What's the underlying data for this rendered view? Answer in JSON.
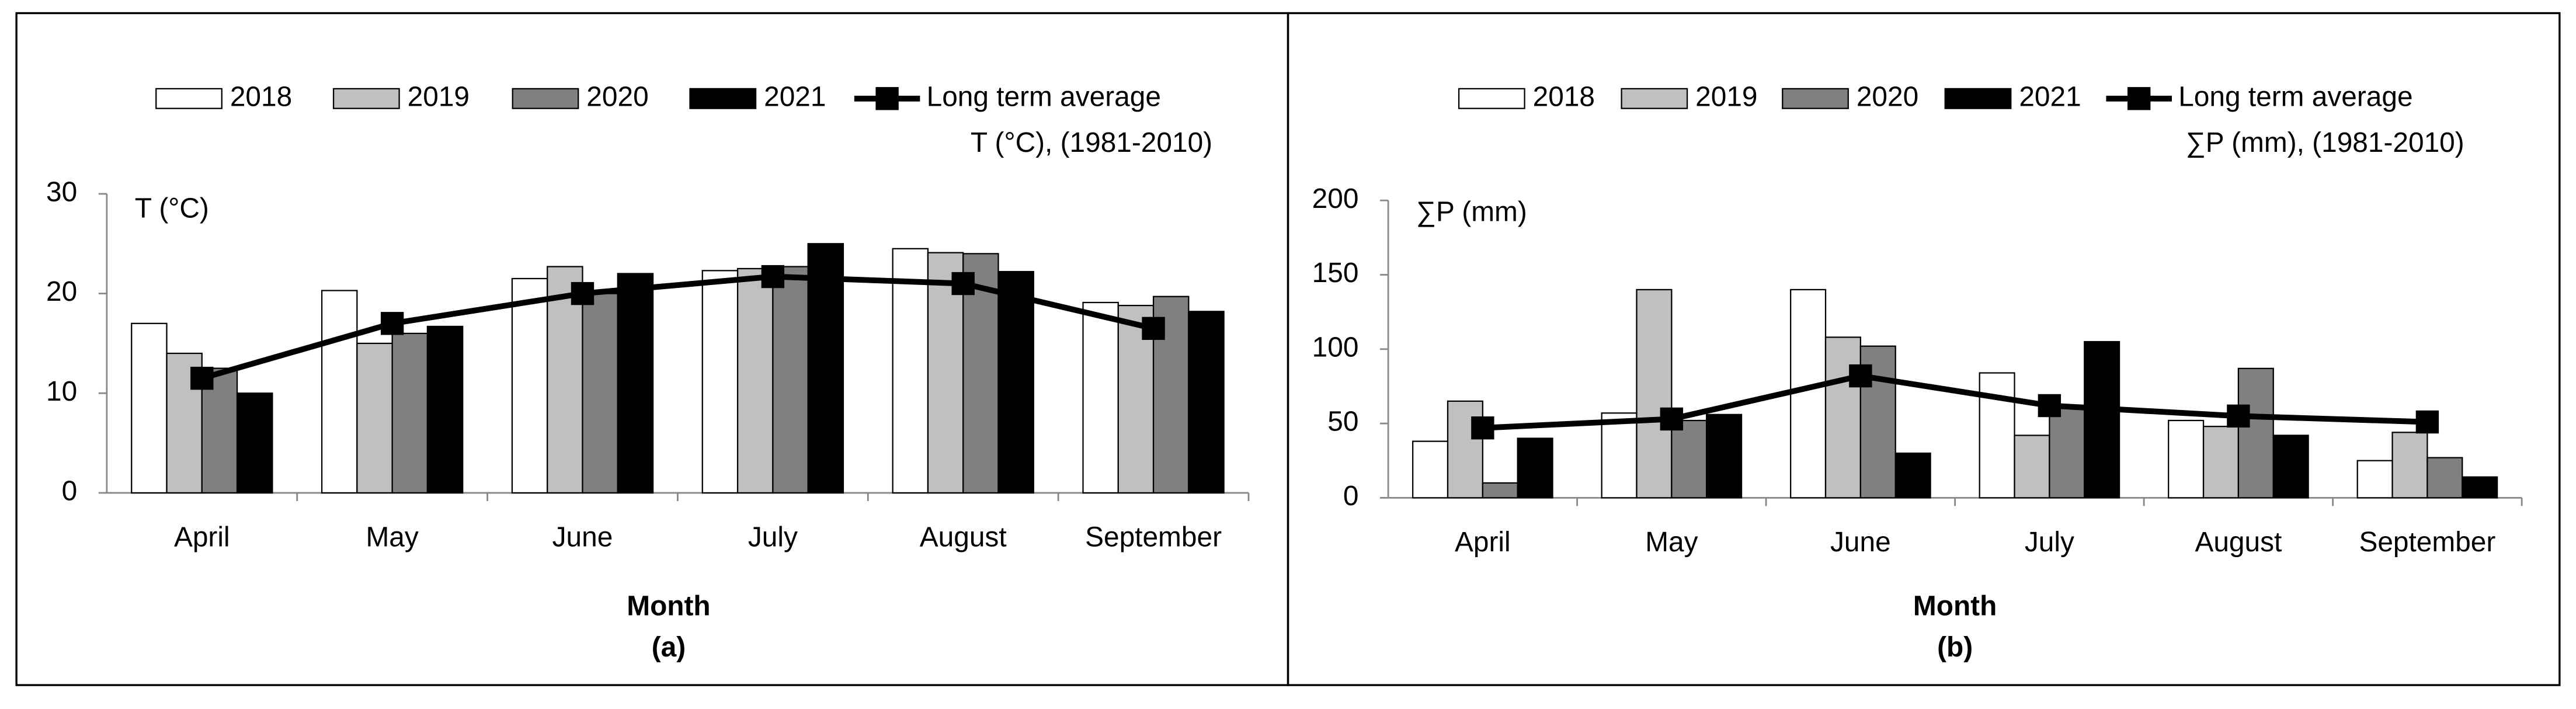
{
  "chart_data": [
    {
      "type": "bar",
      "ylabel": "T (°C)",
      "xlabel": "Month",
      "caption": "(a)",
      "categories": [
        "April",
        "May",
        "June",
        "July",
        "August",
        "September"
      ],
      "ylim": [
        0,
        30
      ],
      "yticks": [
        0,
        10,
        20,
        30
      ],
      "series": [
        {
          "name": "2018",
          "color": "#ffffff",
          "values": [
            17,
            20.3,
            21.5,
            22.3,
            24.5,
            19.1
          ]
        },
        {
          "name": "2019",
          "color": "#c0c0c0",
          "values": [
            14,
            15,
            22.7,
            22.5,
            24.1,
            18.8
          ]
        },
        {
          "name": "2020",
          "color": "#808080",
          "values": [
            12.5,
            16,
            20,
            22.7,
            24,
            19.7
          ]
        },
        {
          "name": "2021",
          "color": "#000000",
          "values": [
            10,
            16.7,
            22,
            25,
            22.2,
            18.2
          ]
        },
        {
          "name": [
            "Long term average",
            "T (°C), (1981-2010)"
          ],
          "type": "line",
          "color": "#000000",
          "values": [
            11.5,
            17,
            20,
            21.7,
            21,
            16.5
          ]
        }
      ]
    },
    {
      "type": "bar",
      "ylabel": "∑P (mm)",
      "xlabel": "Month",
      "caption": "(b)",
      "categories": [
        "April",
        "May",
        "June",
        "July",
        "August",
        "September"
      ],
      "ylim": [
        0,
        200
      ],
      "yticks": [
        0,
        50,
        100,
        150,
        200
      ],
      "series": [
        {
          "name": "2018",
          "color": "#ffffff",
          "values": [
            38,
            57,
            140,
            84,
            52,
            25
          ]
        },
        {
          "name": "2019",
          "color": "#c0c0c0",
          "values": [
            65,
            140,
            108,
            42,
            48,
            44
          ]
        },
        {
          "name": "2020",
          "color": "#808080",
          "values": [
            10,
            52,
            102,
            62,
            87,
            27
          ]
        },
        {
          "name": "2021",
          "color": "#000000",
          "values": [
            40,
            56,
            30,
            105,
            42,
            14
          ]
        },
        {
          "name": [
            "Long term average",
            "∑P (mm), (1981-2010)"
          ],
          "type": "line",
          "color": "#000000",
          "values": [
            47,
            53,
            82,
            62,
            55,
            51
          ]
        }
      ]
    }
  ]
}
